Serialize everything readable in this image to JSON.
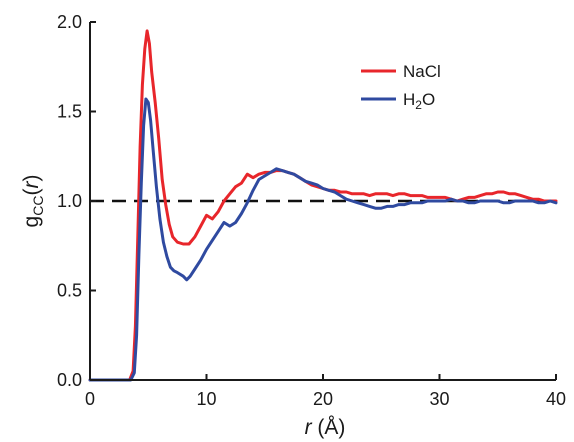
{
  "chart_data": {
    "type": "line",
    "xlabel": {
      "var": "r",
      "unit": " (Å)"
    },
    "ylabel": {
      "base": "g",
      "sub": "CC",
      "open": "(",
      "var": "r",
      "close": ")"
    },
    "xlim": [
      0,
      40
    ],
    "ylim": [
      0,
      2
    ],
    "xticks": [
      0,
      10,
      20,
      30,
      40
    ],
    "xtick_labels": [
      "0",
      "10",
      "20",
      "30",
      "40"
    ],
    "yticks": [
      0,
      0.5,
      1,
      1.5,
      2
    ],
    "ytick_labels": [
      "0.0",
      "0.5",
      "1.0",
      "1.5",
      "2.0"
    ],
    "reference_line": {
      "y": 1.0,
      "style": "dashed",
      "color": "#111111"
    },
    "legend": {
      "position": "top-right"
    },
    "series": [
      {
        "name": "NaCl",
        "legend_label": {
          "base": "NaCl"
        },
        "color": "#e8262b",
        "points": [
          [
            0,
            0
          ],
          [
            3.4,
            0
          ],
          [
            3.7,
            0.05
          ],
          [
            3.9,
            0.3
          ],
          [
            4.1,
            0.8
          ],
          [
            4.3,
            1.3
          ],
          [
            4.5,
            1.65
          ],
          [
            4.7,
            1.85
          ],
          [
            4.9,
            1.95
          ],
          [
            5.1,
            1.88
          ],
          [
            5.3,
            1.72
          ],
          [
            5.6,
            1.55
          ],
          [
            5.9,
            1.35
          ],
          [
            6.2,
            1.12
          ],
          [
            6.5,
            0.98
          ],
          [
            6.8,
            0.87
          ],
          [
            7.1,
            0.8
          ],
          [
            7.5,
            0.77
          ],
          [
            8.0,
            0.76
          ],
          [
            8.5,
            0.76
          ],
          [
            9.0,
            0.8
          ],
          [
            9.5,
            0.86
          ],
          [
            10.0,
            0.92
          ],
          [
            10.5,
            0.9
          ],
          [
            11.0,
            0.94
          ],
          [
            11.5,
            1.0
          ],
          [
            12.0,
            1.04
          ],
          [
            12.5,
            1.08
          ],
          [
            13.0,
            1.1
          ],
          [
            13.5,
            1.15
          ],
          [
            14.0,
            1.13
          ],
          [
            14.5,
            1.15
          ],
          [
            15.0,
            1.16
          ],
          [
            15.5,
            1.16
          ],
          [
            16.0,
            1.17
          ],
          [
            16.5,
            1.17
          ],
          [
            17.0,
            1.16
          ],
          [
            17.5,
            1.15
          ],
          [
            18.0,
            1.13
          ],
          [
            18.5,
            1.11
          ],
          [
            19.0,
            1.09
          ],
          [
            19.5,
            1.08
          ],
          [
            20.0,
            1.07
          ],
          [
            20.5,
            1.06
          ],
          [
            21.0,
            1.06
          ],
          [
            21.5,
            1.05
          ],
          [
            22.0,
            1.05
          ],
          [
            22.5,
            1.04
          ],
          [
            23.0,
            1.04
          ],
          [
            23.5,
            1.04
          ],
          [
            24.0,
            1.03
          ],
          [
            24.5,
            1.04
          ],
          [
            25.0,
            1.04
          ],
          [
            25.5,
            1.04
          ],
          [
            26.0,
            1.03
          ],
          [
            26.5,
            1.04
          ],
          [
            27.0,
            1.04
          ],
          [
            27.5,
            1.03
          ],
          [
            28.0,
            1.03
          ],
          [
            28.5,
            1.03
          ],
          [
            29.0,
            1.02
          ],
          [
            29.5,
            1.02
          ],
          [
            30.0,
            1.02
          ],
          [
            30.5,
            1.02
          ],
          [
            31.0,
            1.01
          ],
          [
            31.5,
            1.0
          ],
          [
            32.0,
            1.01
          ],
          [
            32.5,
            1.02
          ],
          [
            33.0,
            1.02
          ],
          [
            33.5,
            1.03
          ],
          [
            34.0,
            1.04
          ],
          [
            34.5,
            1.04
          ],
          [
            35.0,
            1.05
          ],
          [
            35.5,
            1.05
          ],
          [
            36.0,
            1.04
          ],
          [
            36.5,
            1.04
          ],
          [
            37.0,
            1.03
          ],
          [
            37.5,
            1.02
          ],
          [
            38.0,
            1.01
          ],
          [
            38.5,
            1.01
          ],
          [
            39.0,
            1.0
          ],
          [
            39.5,
            1.0
          ],
          [
            40.0,
            1.0
          ]
        ]
      },
      {
        "name": "H2O",
        "legend_label": {
          "base": "H",
          "sub": "2",
          "after": "O"
        },
        "color": "#2f4aa0",
        "points": [
          [
            0,
            0
          ],
          [
            3.5,
            0
          ],
          [
            3.8,
            0.04
          ],
          [
            4.0,
            0.25
          ],
          [
            4.2,
            0.7
          ],
          [
            4.4,
            1.1
          ],
          [
            4.6,
            1.42
          ],
          [
            4.8,
            1.57
          ],
          [
            5.0,
            1.55
          ],
          [
            5.2,
            1.45
          ],
          [
            5.4,
            1.3
          ],
          [
            5.7,
            1.08
          ],
          [
            6.0,
            0.9
          ],
          [
            6.3,
            0.77
          ],
          [
            6.6,
            0.69
          ],
          [
            6.9,
            0.63
          ],
          [
            7.2,
            0.61
          ],
          [
            7.5,
            0.6
          ],
          [
            8.0,
            0.58
          ],
          [
            8.3,
            0.56
          ],
          [
            8.6,
            0.58
          ],
          [
            9.0,
            0.62
          ],
          [
            9.5,
            0.67
          ],
          [
            10.0,
            0.73
          ],
          [
            10.5,
            0.78
          ],
          [
            11.0,
            0.83
          ],
          [
            11.5,
            0.88
          ],
          [
            12.0,
            0.86
          ],
          [
            12.5,
            0.88
          ],
          [
            13.0,
            0.93
          ],
          [
            13.5,
            0.99
          ],
          [
            14.0,
            1.06
          ],
          [
            14.5,
            1.12
          ],
          [
            15.0,
            1.14
          ],
          [
            15.5,
            1.16
          ],
          [
            16.0,
            1.18
          ],
          [
            16.5,
            1.17
          ],
          [
            17.0,
            1.16
          ],
          [
            17.5,
            1.15
          ],
          [
            18.0,
            1.13
          ],
          [
            18.5,
            1.11
          ],
          [
            19.0,
            1.1
          ],
          [
            19.5,
            1.09
          ],
          [
            20.0,
            1.07
          ],
          [
            20.5,
            1.06
          ],
          [
            21.0,
            1.05
          ],
          [
            21.5,
            1.03
          ],
          [
            22.0,
            1.01
          ],
          [
            22.5,
            1.0
          ],
          [
            23.0,
            0.99
          ],
          [
            23.5,
            0.98
          ],
          [
            24.0,
            0.97
          ],
          [
            24.5,
            0.96
          ],
          [
            25.0,
            0.96
          ],
          [
            25.5,
            0.97
          ],
          [
            26.0,
            0.97
          ],
          [
            26.5,
            0.98
          ],
          [
            27.0,
            0.98
          ],
          [
            27.5,
            0.99
          ],
          [
            28.0,
            0.99
          ],
          [
            28.5,
            0.99
          ],
          [
            29.0,
            1.0
          ],
          [
            29.5,
            1.0
          ],
          [
            30.0,
            1.0
          ],
          [
            30.5,
            1.0
          ],
          [
            31.0,
            1.01
          ],
          [
            31.5,
            1.0
          ],
          [
            32.0,
            1.0
          ],
          [
            32.5,
            0.99
          ],
          [
            33.0,
            0.99
          ],
          [
            33.5,
            1.0
          ],
          [
            34.0,
            1.0
          ],
          [
            34.5,
            1.0
          ],
          [
            35.0,
            1.0
          ],
          [
            35.5,
            0.99
          ],
          [
            36.0,
            0.99
          ],
          [
            36.5,
            1.0
          ],
          [
            37.0,
            1.0
          ],
          [
            37.5,
            1.0
          ],
          [
            38.0,
            1.0
          ],
          [
            38.5,
            0.99
          ],
          [
            39.0,
            0.99
          ],
          [
            39.5,
            1.0
          ],
          [
            40.0,
            0.99
          ]
        ]
      }
    ]
  }
}
